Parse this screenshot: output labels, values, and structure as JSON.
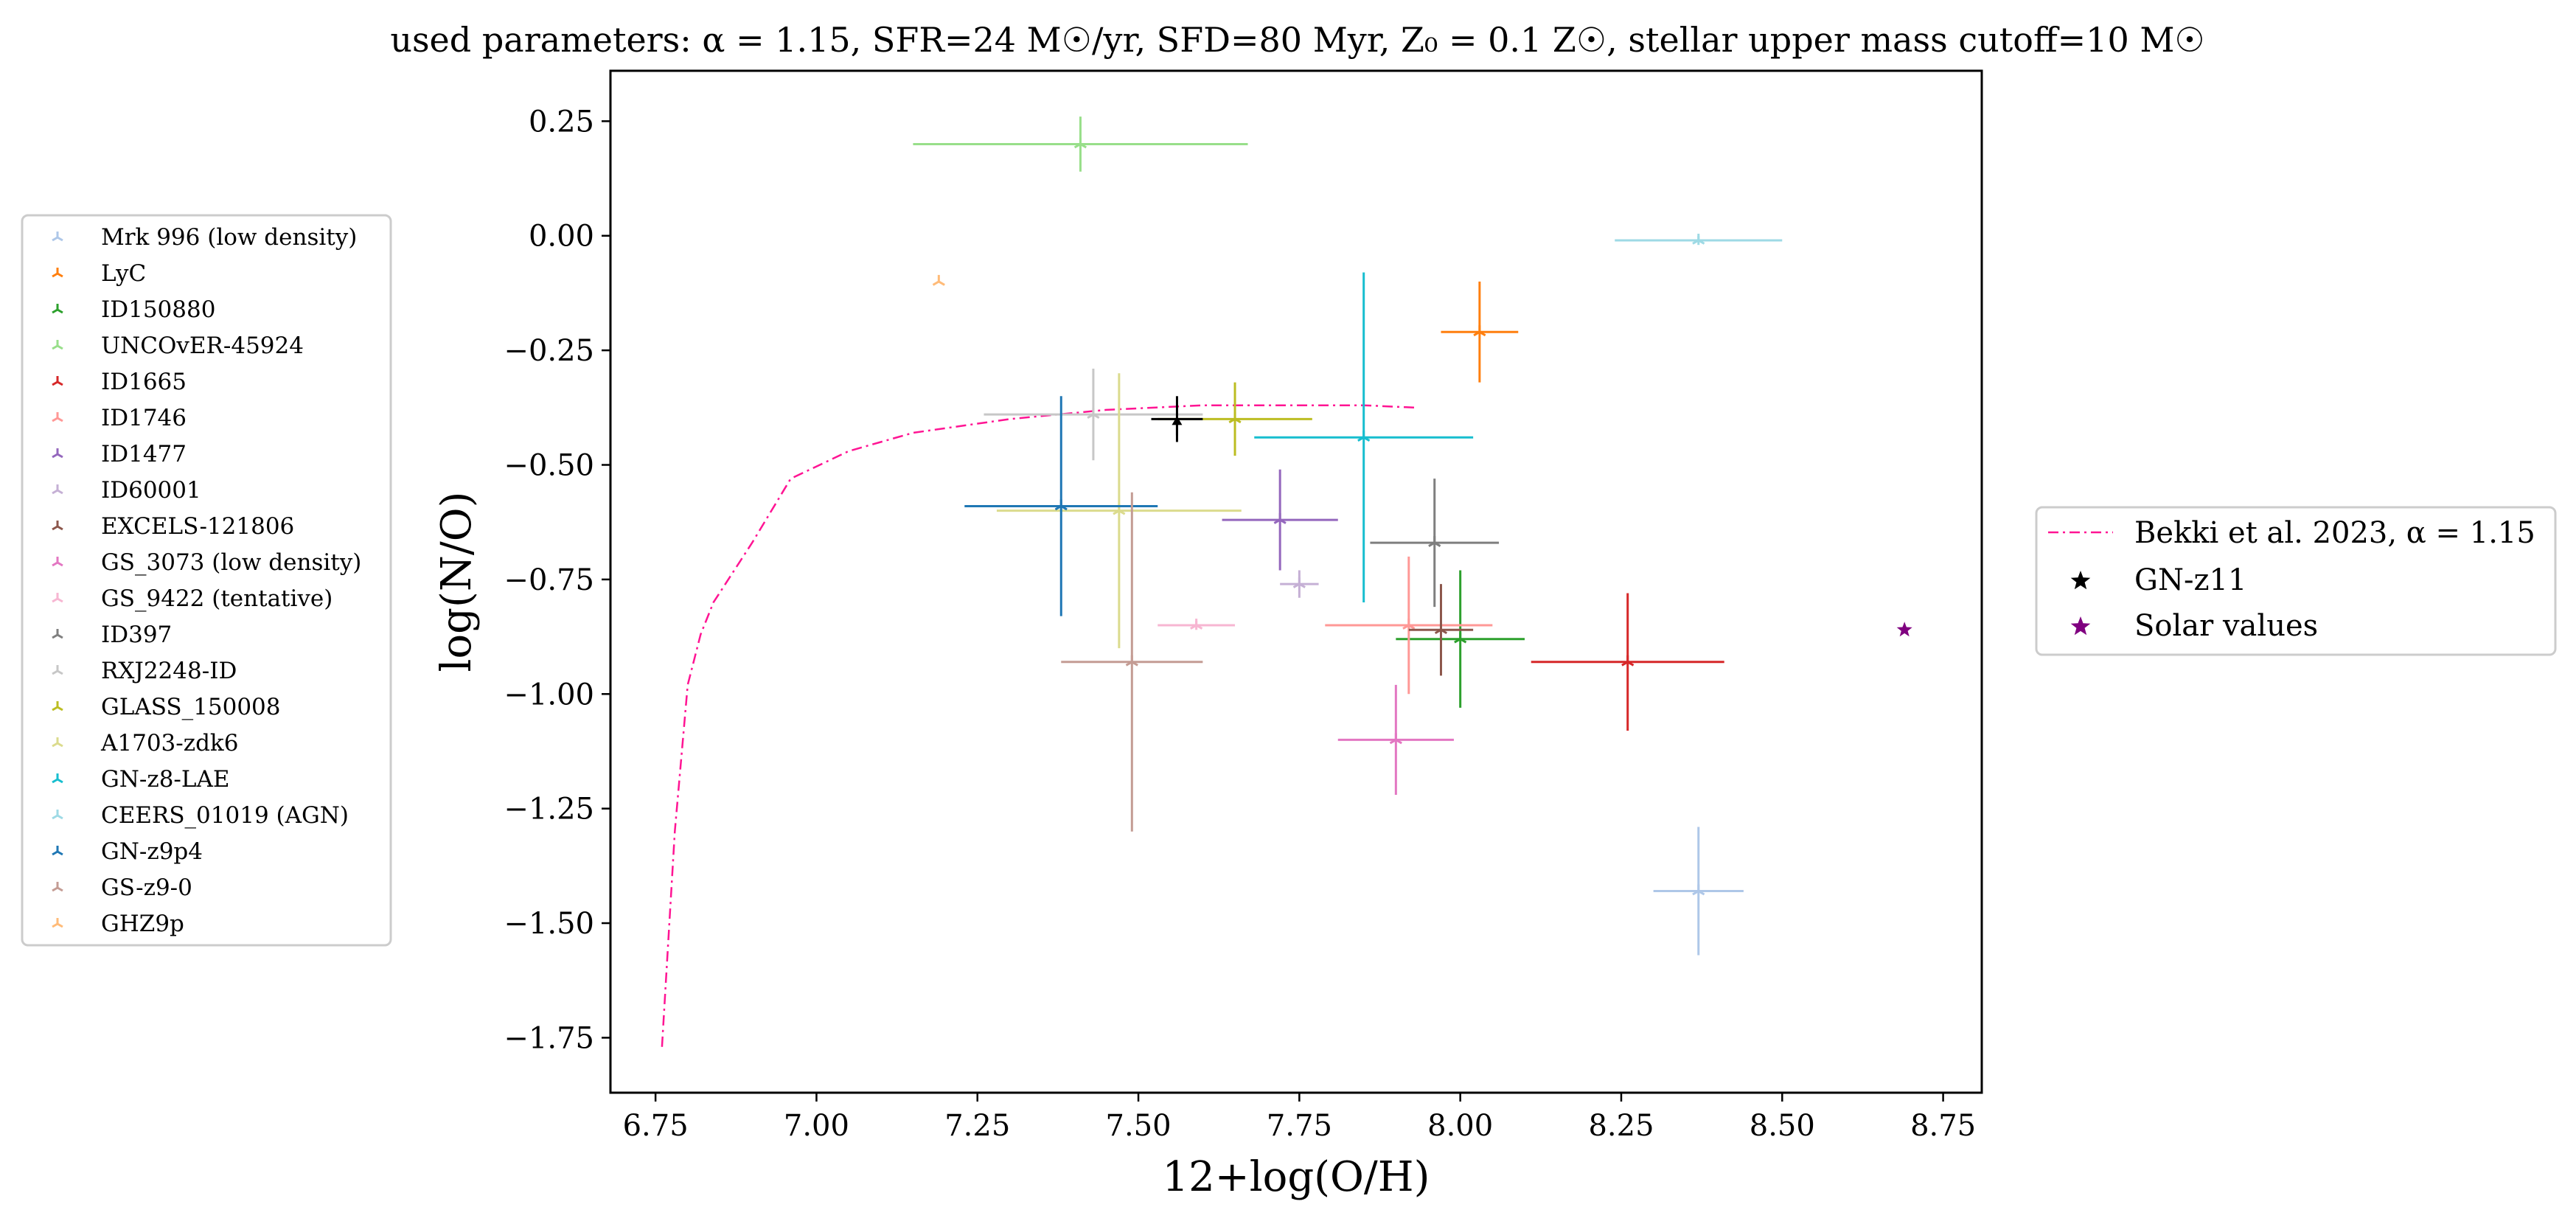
{
  "chart_data": {
    "type": "scatter",
    "title": {
      "text": "used parameters: α = 1.15, SFR=24 M☉/yr, SFD=80 Myr, Z₀ = 0.1 Z☉, stellar upper mass cutoff=10 M☉"
    },
    "xlabel": "12+log(O/H)",
    "ylabel": "log(N/O)",
    "xlim": [
      6.68,
      8.81
    ],
    "ylim": [
      -1.87,
      0.36
    ],
    "xticks": [
      6.75,
      7.0,
      7.25,
      7.5,
      7.75,
      8.0,
      8.25,
      8.5,
      8.75
    ],
    "xtick_labels": [
      "6.75",
      "7.00",
      "7.25",
      "7.50",
      "7.75",
      "8.00",
      "8.25",
      "8.50",
      "8.75"
    ],
    "yticks": [
      0.25,
      0.0,
      -0.25,
      -0.5,
      -0.75,
      -1.0,
      -1.25,
      -1.5,
      -1.75
    ],
    "ytick_labels": [
      "0.25",
      "0.00",
      "−0.25",
      "−0.50",
      "−0.75",
      "−1.00",
      "−1.25",
      "−1.50",
      "−1.75"
    ],
    "grid": false,
    "series": [
      {
        "name": "Mrk 996 (low density)",
        "color": "#aec7e8",
        "x": 8.37,
        "y": -1.43,
        "xerr": 0.07,
        "yerr": 0.14
      },
      {
        "name": "LyC",
        "color": "#ff7f0e",
        "x": 8.03,
        "y": -0.21,
        "xerr": 0.06,
        "yerr": 0.11
      },
      {
        "name": "ID150880",
        "color": "#2ca02c",
        "x": 8.0,
        "y": -0.88,
        "xerr": 0.1,
        "yerr": 0.15
      },
      {
        "name": "UNCOvER-45924",
        "color": "#98df8a",
        "x": 7.41,
        "y": 0.2,
        "xerr": 0.26,
        "yerr": 0.06
      },
      {
        "name": "ID1665",
        "color": "#d62728",
        "x": 8.26,
        "y": -0.93,
        "xerr": 0.15,
        "yerr": 0.15
      },
      {
        "name": "ID1746",
        "color": "#ff9896",
        "x": 7.92,
        "y": -0.85,
        "xerr": 0.13,
        "yerr": 0.15
      },
      {
        "name": "ID1477",
        "color": "#9467bd",
        "x": 7.72,
        "y": -0.62,
        "xerr": 0.09,
        "yerr": 0.11
      },
      {
        "name": "ID60001",
        "color": "#c5b0d5",
        "x": 7.75,
        "y": -0.76,
        "xerr": 0.03,
        "yerr": 0.03
      },
      {
        "name": "EXCELS-121806",
        "color": "#8c564b",
        "x": 7.97,
        "y": -0.86,
        "xerr": 0.05,
        "yerr": 0.1
      },
      {
        "name": "GS_3073 (low density)",
        "color": "#e377c2",
        "x": 7.9,
        "y": -1.1,
        "xerr": 0.09,
        "yerr": 0.12
      },
      {
        "name": "GS_9422 (tentative)",
        "color": "#f7b6d2",
        "x": 7.59,
        "y": -0.85,
        "xerr": 0.06,
        "yerr": 0.01
      },
      {
        "name": "ID397",
        "color": "#7f7f7f",
        "x": 7.96,
        "y": -0.67,
        "xerr": 0.1,
        "yerr": 0.14
      },
      {
        "name": "RXJ2248-ID",
        "color": "#c7c7c7",
        "x": 7.43,
        "y": -0.39,
        "xerr": 0.17,
        "yerr": 0.1
      },
      {
        "name": "GLASS_150008",
        "color": "#bcbd22",
        "x": 7.65,
        "y": -0.4,
        "xerr": 0.12,
        "yerr": 0.08
      },
      {
        "name": "A1703-zdk6",
        "color": "#dbdb8d",
        "x": 7.47,
        "y": -0.6,
        "xerr": 0.19,
        "yerr": 0.3
      },
      {
        "name": "GN-z8-LAE",
        "color": "#17becf",
        "x": 7.85,
        "y": -0.44,
        "xerr": 0.17,
        "yerr": 0.36
      },
      {
        "name": "CEERS_01019 (AGN)",
        "color": "#9edae5",
        "x": 8.37,
        "y": -0.01,
        "xerr": 0.13,
        "yerr": 0.01
      },
      {
        "name": "GN-z9p4",
        "color": "#1f77b4",
        "x": 7.38,
        "y": -0.59,
        "xerr": 0.15,
        "yerr": 0.24
      },
      {
        "name": "GS-z9-0",
        "color": "#c49c94",
        "x": 7.49,
        "y": -0.93,
        "xerr": 0.11,
        "yerr": 0.37
      },
      {
        "name": "GHZ9p",
        "color": "#ffbb78",
        "x": 7.19,
        "y": -0.1,
        "xerr": 0,
        "yerr": 0
      }
    ],
    "gnz11": {
      "name": "GN-z11",
      "color": "#000000",
      "x": 7.56,
      "y": -0.4,
      "xerr": 0.04,
      "yerr": 0.05,
      "marker": "star"
    },
    "solar": {
      "name": "Solar values",
      "color": "#800080",
      "x": 8.69,
      "y": -0.86,
      "marker": "star"
    },
    "model_line": {
      "name": "Bekki et al. 2023, α = 1.15",
      "color": "#ff1493",
      "style": "dash-dot",
      "x": [
        6.76,
        6.78,
        6.8,
        6.82,
        6.84,
        6.9,
        6.96,
        7.05,
        7.15,
        7.3,
        7.45,
        7.6,
        7.75,
        7.85,
        7.93
      ],
      "y": [
        -1.77,
        -1.3,
        -0.98,
        -0.87,
        -0.8,
        -0.67,
        -0.53,
        -0.47,
        -0.43,
        -0.4,
        -0.38,
        -0.37,
        -0.37,
        -0.37,
        -0.375
      ]
    },
    "legend_left_placement": "outside-left",
    "legend_right_placement": "outside-right"
  }
}
